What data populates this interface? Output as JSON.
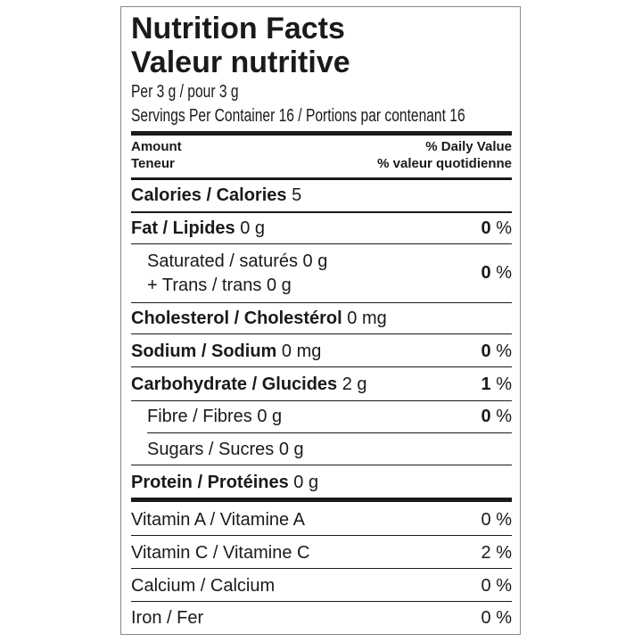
{
  "title_en": "Nutrition Facts",
  "title_fr": "Valeur nutritive",
  "serving": "Per 3 g / pour 3 g",
  "servings_per_container": "Servings Per Container 16 / Portions par contenant 16",
  "header": {
    "amount": "Amount",
    "teneur": "Teneur",
    "dv_en": "% Daily Value",
    "dv_fr": "% valeur quotidienne"
  },
  "calories": {
    "label": "Calories / Calories",
    "value": "5"
  },
  "nutrients": [
    {
      "label": "Fat / Lipides",
      "amount": "0 g",
      "dv": "0",
      "pct": "%"
    },
    {
      "label": "Saturated / saturés 0 g",
      "label2": "+ Trans / trans 0 g",
      "dv": "0",
      "pct": "%"
    },
    {
      "label": "Cholesterol / Cholestérol",
      "amount": "0 mg"
    },
    {
      "label": "Sodium / Sodium",
      "amount": "0 mg",
      "dv": "0",
      "pct": "%"
    },
    {
      "label": "Carbohydrate / Glucides",
      "amount": "2 g",
      "dv": "1",
      "pct": "%"
    },
    {
      "label": "Fibre / Fibres 0 g",
      "dv": "0",
      "pct": "%"
    },
    {
      "label": "Sugars / Sucres 0 g"
    },
    {
      "label": "Protein / Protéines",
      "amount": "0 g"
    }
  ],
  "vitamins": [
    {
      "label": "Vitamin A / Vitamine A",
      "dv": "0 %"
    },
    {
      "label": "Vitamin C / Vitamine C",
      "dv": "2 %"
    },
    {
      "label": "Calcium / Calcium",
      "dv": "0 %"
    },
    {
      "label": "Iron / Fer",
      "dv": "0 %"
    }
  ]
}
